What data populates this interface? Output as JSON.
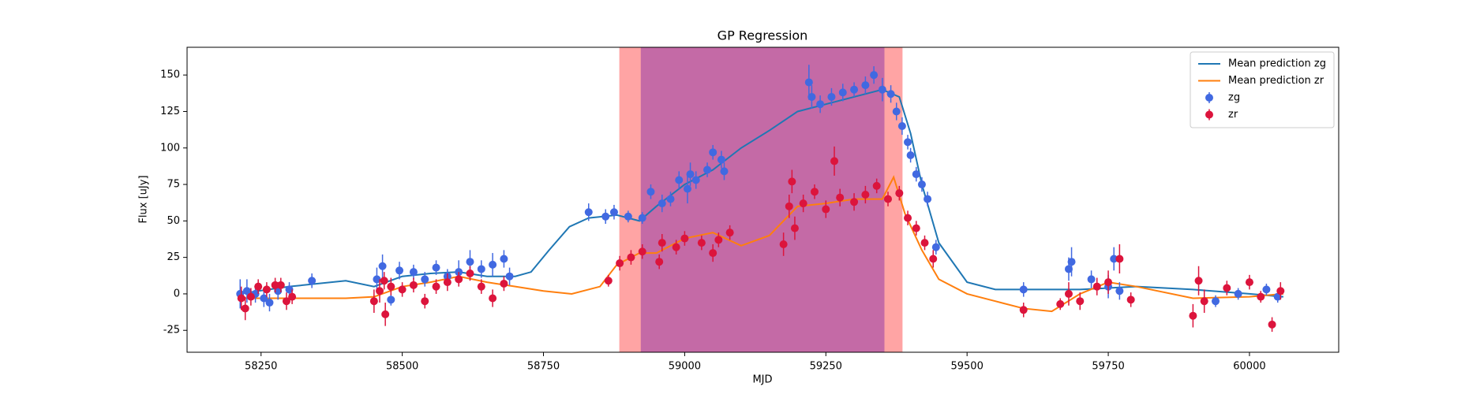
{
  "chart_data": {
    "type": "scatter",
    "title": "GP Regression",
    "x_label": "MJD",
    "y_label": "Flux [uJy]",
    "xlim": [
      58119,
      60158
    ],
    "ylim": [
      -40,
      169
    ],
    "xticks": [
      58250,
      58500,
      58750,
      59000,
      59250,
      59500,
      59750,
      60000
    ],
    "yticks": [
      -25,
      0,
      25,
      50,
      75,
      100,
      125,
      150
    ],
    "legend": "upper right",
    "spans": [
      {
        "range": [
          58885,
          59385
        ],
        "color": "#ffa4a4"
      },
      {
        "range": [
          58923,
          59353
        ],
        "color": "#c46aa6"
      }
    ],
    "series": [
      {
        "name": "Mean prediction zg",
        "type": "line",
        "color": "#1f77b4",
        "x": [
          58210,
          58300,
          58400,
          58450,
          58500,
          58550,
          58600,
          58650,
          58700,
          58728,
          58760,
          58796,
          58830,
          58880,
          58920,
          58950,
          59000,
          59050,
          59100,
          59150,
          59200,
          59250,
          59300,
          59350,
          59380,
          59400,
          59420,
          59450,
          59500,
          59550,
          59700,
          59800,
          59900,
          60000,
          60060
        ],
        "values": [
          0,
          5,
          9,
          5,
          12,
          14,
          15,
          12,
          12,
          15,
          30,
          46,
          52,
          54,
          50,
          60,
          75,
          85,
          100,
          112,
          125,
          130,
          135,
          140,
          135,
          110,
          75,
          35,
          8,
          3,
          3,
          5,
          3,
          0,
          -2
        ]
      },
      {
        "name": "Mean prediction zr",
        "type": "line",
        "color": "#ff7f0e",
        "x": [
          58210,
          58300,
          58400,
          58450,
          58500,
          58550,
          58600,
          58650,
          58700,
          58750,
          58800,
          58850,
          58880,
          58920,
          58950,
          59000,
          59050,
          59100,
          59150,
          59200,
          59250,
          59300,
          59350,
          59370,
          59390,
          59420,
          59450,
          59500,
          59550,
          59600,
          59650,
          59700,
          59750,
          59800,
          59900,
          60000,
          60060
        ],
        "values": [
          -3,
          -3,
          -3,
          -2,
          5,
          8,
          12,
          8,
          5,
          2,
          0,
          5,
          20,
          28,
          28,
          38,
          42,
          33,
          40,
          60,
          62,
          65,
          65,
          80,
          55,
          30,
          10,
          0,
          -5,
          -10,
          -12,
          0,
          8,
          5,
          -3,
          -2,
          0
        ]
      },
      {
        "name": "zg",
        "type": "errorbar",
        "color": "#4169e1",
        "x": [
          58213,
          58225,
          58240,
          58255,
          58265,
          58280,
          58300,
          58340,
          58455,
          58465,
          58480,
          58495,
          58520,
          58540,
          58560,
          58580,
          58600,
          58620,
          58640,
          58660,
          58680,
          58690,
          58830,
          58860,
          58875,
          58900,
          58925,
          58940,
          58960,
          58975,
          58990,
          59005,
          59010,
          59020,
          59040,
          59050,
          59065,
          59070,
          59220,
          59225,
          59240,
          59260,
          59280,
          59300,
          59320,
          59335,
          59350,
          59365,
          59375,
          59385,
          59395,
          59400,
          59410,
          59420,
          59430,
          59445,
          59600,
          59680,
          59685,
          59720,
          59750,
          59760,
          59770,
          59940,
          59980,
          60030,
          60050
        ],
        "values": [
          0,
          2,
          0,
          -3,
          -6,
          2,
          3,
          9,
          10,
          19,
          -4,
          16,
          15,
          10,
          18,
          12,
          15,
          22,
          17,
          20,
          24,
          12,
          56,
          53,
          56,
          53,
          52,
          70,
          62,
          65,
          78,
          72,
          82,
          78,
          85,
          97,
          92,
          84,
          145,
          135,
          130,
          135,
          138,
          140,
          143,
          150,
          140,
          137,
          125,
          115,
          104,
          95,
          82,
          75,
          65,
          32,
          3,
          17,
          22,
          10,
          5,
          24,
          2,
          -5,
          0,
          3,
          -2
        ],
        "errors": [
          10,
          8,
          6,
          6,
          6,
          6,
          5,
          5,
          8,
          8,
          4,
          6,
          5,
          5,
          5,
          5,
          8,
          8,
          6,
          8,
          6,
          6,
          6,
          5,
          5,
          4,
          4,
          5,
          6,
          5,
          6,
          10,
          8,
          6,
          5,
          5,
          6,
          6,
          12,
          8,
          6,
          6,
          6,
          5,
          6,
          6,
          8,
          6,
          6,
          6,
          5,
          5,
          5,
          5,
          5,
          5,
          5,
          8,
          10,
          6,
          8,
          8,
          6,
          4,
          4,
          4,
          4
        ]
      },
      {
        "name": "zr",
        "type": "errorbar",
        "color": "#dc143c",
        "x": [
          58215,
          58222,
          58232,
          58245,
          58260,
          58275,
          58285,
          58295,
          58305,
          58450,
          58460,
          58468,
          58470,
          58480,
          58500,
          58520,
          58540,
          58560,
          58580,
          58600,
          58620,
          58640,
          58660,
          58680,
          58865,
          58885,
          58905,
          58925,
          58955,
          58960,
          58985,
          59000,
          59030,
          59050,
          59060,
          59080,
          59175,
          59185,
          59190,
          59195,
          59210,
          59230,
          59250,
          59265,
          59275,
          59300,
          59320,
          59340,
          59360,
          59380,
          59395,
          59410,
          59425,
          59440,
          59600,
          59665,
          59680,
          59700,
          59730,
          59750,
          59770,
          59790,
          59900,
          59910,
          59920,
          59960,
          60000,
          60020,
          60040,
          60055
        ],
        "values": [
          -3,
          -10,
          -2,
          5,
          3,
          6,
          6,
          -5,
          -2,
          -5,
          2,
          9,
          -14,
          5,
          3,
          6,
          -5,
          5,
          8,
          10,
          14,
          5,
          -3,
          7,
          9,
          21,
          25,
          29,
          22,
          35,
          32,
          38,
          35,
          28,
          37,
          42,
          34,
          60,
          77,
          45,
          62,
          70,
          58,
          91,
          66,
          63,
          68,
          74,
          65,
          69,
          52,
          45,
          35,
          24,
          -11,
          -7,
          0,
          -5,
          5,
          8,
          24,
          -4,
          -15,
          9,
          -5,
          4,
          8,
          -2,
          -21,
          2
        ],
        "errors": [
          8,
          8,
          6,
          5,
          5,
          5,
          5,
          6,
          5,
          8,
          8,
          6,
          8,
          6,
          5,
          5,
          5,
          5,
          6,
          5,
          5,
          5,
          6,
          5,
          4,
          5,
          5,
          5,
          5,
          6,
          5,
          5,
          5,
          6,
          5,
          5,
          8,
          8,
          8,
          8,
          6,
          5,
          6,
          10,
          6,
          6,
          6,
          5,
          5,
          5,
          5,
          5,
          5,
          6,
          5,
          4,
          8,
          6,
          6,
          8,
          10,
          5,
          8,
          10,
          8,
          5,
          5,
          4,
          5,
          6
        ]
      }
    ]
  }
}
